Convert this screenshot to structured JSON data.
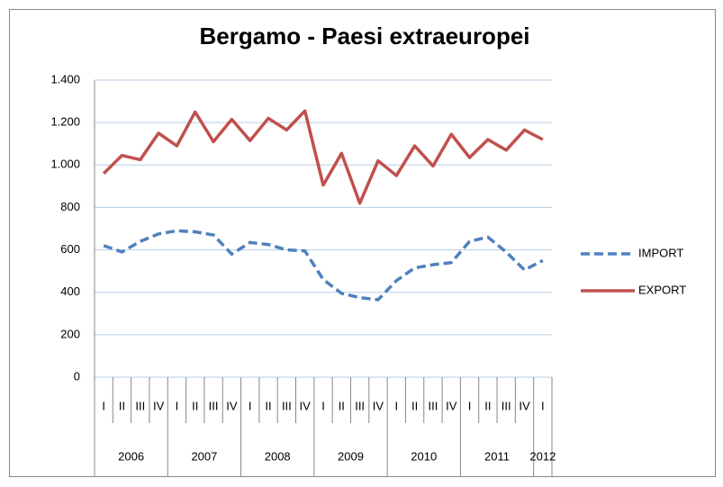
{
  "chart_data": {
    "type": "line",
    "title": "Bergamo - Paesi extraeuropei",
    "categories": [
      "I",
      "II",
      "III",
      "IV",
      "I",
      "II",
      "III",
      "IV",
      "I",
      "II",
      "III",
      "IV",
      "I",
      "II",
      "III",
      "IV",
      "I",
      "II",
      "III",
      "IV",
      "I",
      "II",
      "III",
      "IV",
      "I"
    ],
    "years": [
      "2006",
      "2007",
      "2008",
      "2009",
      "2010",
      "2011",
      "2012"
    ],
    "series": [
      {
        "name": "IMPORT",
        "color": "#4f81bd",
        "dashed": true,
        "values": [
          620,
          590,
          640,
          675,
          690,
          685,
          670,
          580,
          635,
          625,
          600,
          595,
          460,
          395,
          375,
          365,
          455,
          515,
          530,
          540,
          640,
          660,
          590,
          505,
          550
        ]
      },
      {
        "name": "EXPORT",
        "color": "#c0504d",
        "dashed": false,
        "values": [
          960,
          1045,
          1025,
          1150,
          1090,
          1250,
          1110,
          1215,
          1115,
          1220,
          1165,
          1255,
          905,
          1055,
          820,
          1020,
          950,
          1090,
          995,
          1145,
          1035,
          1120,
          1070,
          1165,
          1120
        ]
      }
    ],
    "ylim": [
      0,
      1400
    ],
    "yticks": [
      0,
      200,
      400,
      600,
      800,
      {
        "value": 1000,
        "label": "1.000"
      },
      {
        "value": 1200,
        "label": "1.200"
      },
      {
        "value": 1400,
        "label": "1.400"
      }
    ],
    "grid": true,
    "legend": "right"
  }
}
